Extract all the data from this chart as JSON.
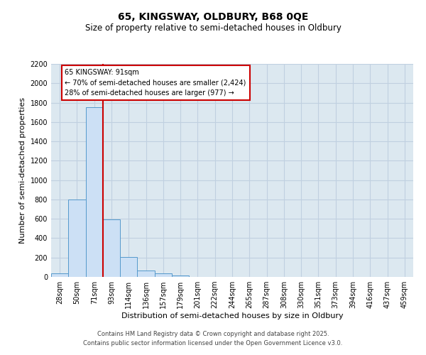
{
  "title1": "65, KINGSWAY, OLDBURY, B68 0QE",
  "title2": "Size of property relative to semi-detached houses in Oldbury",
  "xlabel": "Distribution of semi-detached houses by size in Oldbury",
  "ylabel": "Number of semi-detached properties",
  "categories": [
    "28sqm",
    "50sqm",
    "71sqm",
    "93sqm",
    "114sqm",
    "136sqm",
    "157sqm",
    "179sqm",
    "201sqm",
    "222sqm",
    "244sqm",
    "265sqm",
    "287sqm",
    "308sqm",
    "330sqm",
    "351sqm",
    "373sqm",
    "394sqm",
    "416sqm",
    "437sqm",
    "459sqm"
  ],
  "values": [
    40,
    800,
    1750,
    595,
    205,
    65,
    38,
    18,
    0,
    0,
    0,
    0,
    0,
    0,
    0,
    0,
    0,
    0,
    0,
    0,
    0
  ],
  "bar_color": "#cce0f5",
  "bar_edge_color": "#5599cc",
  "red_line_color": "#cc0000",
  "annotation_title": "65 KINGSWAY: 91sqm",
  "annotation_line1": "← 70% of semi-detached houses are smaller (2,424)",
  "annotation_line2": "28% of semi-detached houses are larger (977) →",
  "annotation_box_color": "#ffffff",
  "annotation_box_edge": "#cc0000",
  "ylim": [
    0,
    2200
  ],
  "yticks": [
    0,
    200,
    400,
    600,
    800,
    1000,
    1200,
    1400,
    1600,
    1800,
    2000,
    2200
  ],
  "grid_color": "#c0d0e0",
  "bg_color": "#dce8f0",
  "footer1": "Contains HM Land Registry data © Crown copyright and database right 2025.",
  "footer2": "Contains public sector information licensed under the Open Government Licence v3.0."
}
